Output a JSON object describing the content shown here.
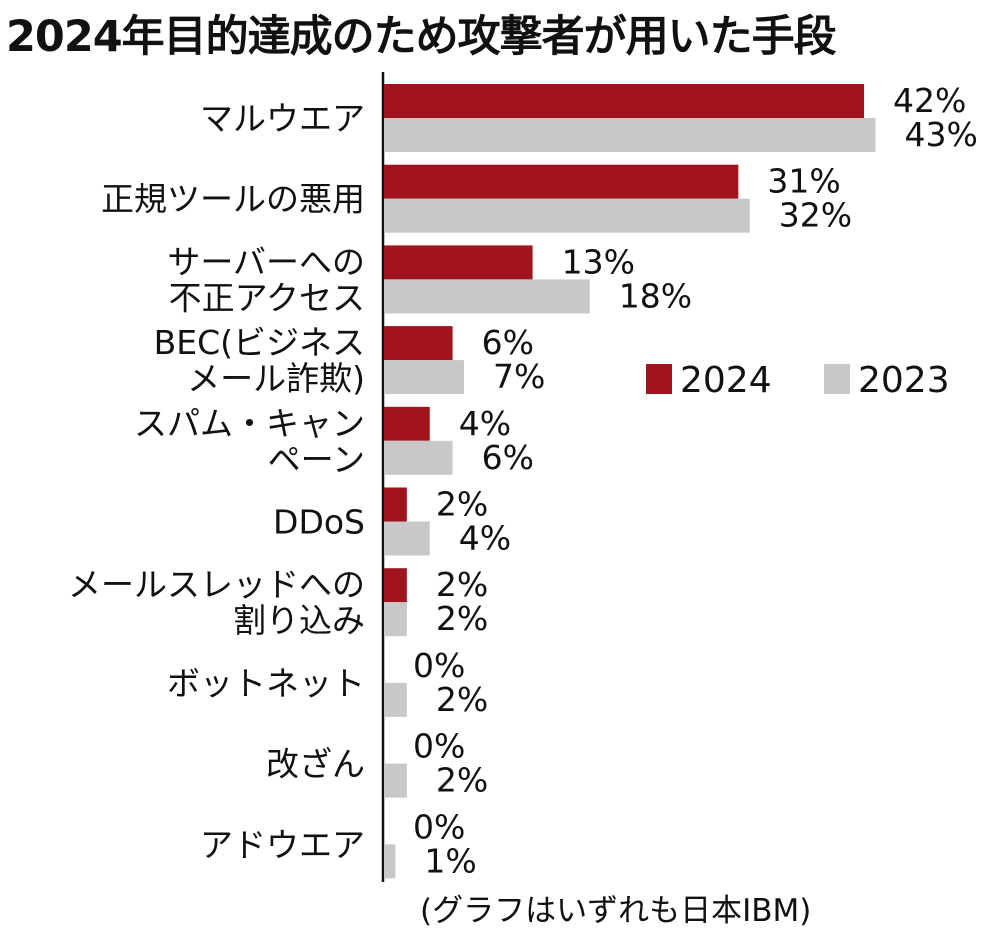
{
  "chart_data": {
    "type": "bar",
    "orientation": "horizontal",
    "title": "2024年目的達成のため攻撃者が用いた手段",
    "xlim": [
      0,
      45
    ],
    "categories": [
      [
        "マルウエア"
      ],
      [
        "正規ツールの悪用"
      ],
      [
        "サーバーへの",
        "不正アクセス"
      ],
      [
        "BEC(ビジネス",
        "メール詐欺)"
      ],
      [
        "スパム・キャン",
        "ペーン"
      ],
      [
        "DDoS"
      ],
      [
        "メールスレッドへの",
        "割り込み"
      ],
      [
        "ボットネット"
      ],
      [
        "改ざん"
      ],
      [
        "アドウエア"
      ]
    ],
    "series": [
      {
        "name": "2024",
        "color": "#a1141e",
        "values": [
          42,
          31,
          13,
          6,
          4,
          2,
          2,
          0,
          0,
          0
        ]
      },
      {
        "name": "2023",
        "color": "#c8c8c8",
        "values": [
          43,
          32,
          18,
          7,
          6,
          4,
          2,
          2,
          2,
          1
        ]
      }
    ],
    "value_suffix": "%",
    "legend_position": "middle-right",
    "source_note": "(グラフはいずれも日本IBM)"
  }
}
